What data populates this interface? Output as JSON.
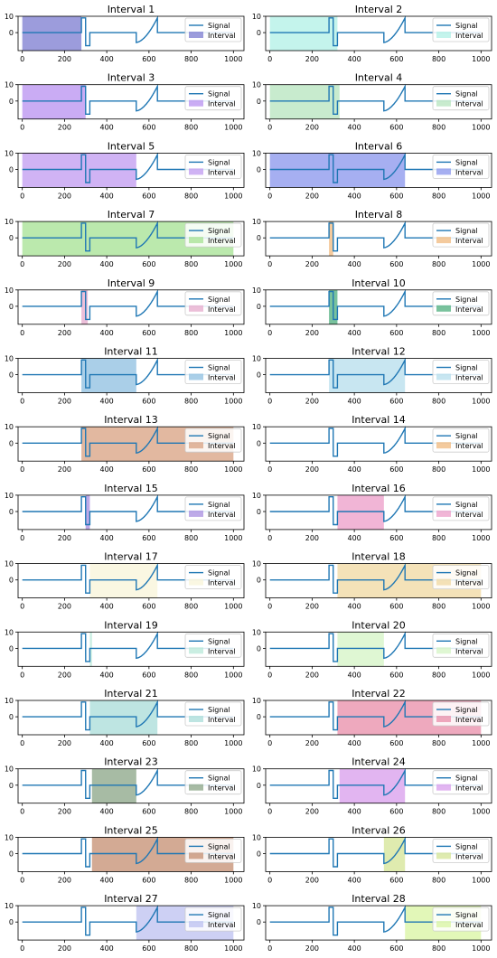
{
  "figure": {
    "legend_signal_label": "Signal",
    "legend_interval_label": "Interval"
  },
  "chart_data": {
    "type": "line",
    "grid": false,
    "legend_position": "top-right",
    "signal_color": "#1f77b4",
    "xlim": [
      -20,
      1050
    ],
    "ylim": [
      -11,
      10
    ],
    "x_ticks": [
      0,
      200,
      400,
      600,
      800,
      1000
    ],
    "y_ticks": [
      0,
      10
    ],
    "signal_breakpoints": [
      0,
      280,
      320,
      540,
      640
    ],
    "signal_description": "flat at 0, pulse to ~9 at 280-300, dip to ~-8 at 300-320, flat, then rising curve from ~-6 at 540 to ~9 at 640, then 0 to 1000",
    "panels": [
      {
        "title": "Interval 1",
        "interval": [
          0,
          280
        ],
        "color": "#7b7bd0"
      },
      {
        "title": "Interval 2",
        "interval": [
          0,
          320
        ],
        "color": "#b0f0e6"
      },
      {
        "title": "Interval 3",
        "interval": [
          0,
          300
        ],
        "color": "#b890f0"
      },
      {
        "title": "Interval 4",
        "interval": [
          0,
          330
        ],
        "color": "#b6e4bd"
      },
      {
        "title": "Interval 5",
        "interval": [
          0,
          540
        ],
        "color": "#c09af0"
      },
      {
        "title": "Interval 6",
        "interval": [
          0,
          640
        ],
        "color": "#8894ec"
      },
      {
        "title": "Interval 7",
        "interval": [
          0,
          1000
        ],
        "color": "#a4e292"
      },
      {
        "title": "Interval 8",
        "interval": [
          280,
          300
        ],
        "color": "#f0b87c"
      },
      {
        "title": "Interval 9",
        "interval": [
          280,
          310
        ],
        "color": "#e6a9cc"
      },
      {
        "title": "Interval 10",
        "interval": [
          280,
          320
        ],
        "color": "#4cae7c"
      },
      {
        "title": "Interval 11",
        "interval": [
          280,
          540
        ],
        "color": "#8ebfe0"
      },
      {
        "title": "Interval 12",
        "interval": [
          280,
          640
        ],
        "color": "#b6deec"
      },
      {
        "title": "Interval 13",
        "interval": [
          280,
          1000
        ],
        "color": "#d8a080"
      },
      {
        "title": "Interval 14",
        "interval": [
          0,
          0
        ],
        "color": "#f0b87c"
      },
      {
        "title": "Interval 15",
        "interval": [
          300,
          320
        ],
        "color": "#a88ee0"
      },
      {
        "title": "Interval 16",
        "interval": [
          320,
          540
        ],
        "color": "#ec9cc8"
      },
      {
        "title": "Interval 17",
        "interval": [
          320,
          640
        ],
        "color": "#f8f4d8"
      },
      {
        "title": "Interval 18",
        "interval": [
          320,
          1000
        ],
        "color": "#f0d8a0"
      },
      {
        "title": "Interval 19",
        "interval": [
          320,
          330
        ],
        "color": "#b8e8d8"
      },
      {
        "title": "Interval 20",
        "interval": [
          320,
          540
        ],
        "color": "#d4f4c4"
      },
      {
        "title": "Interval 21",
        "interval": [
          320,
          640
        ],
        "color": "#a8dcd8"
      },
      {
        "title": "Interval 22",
        "interval": [
          320,
          1000
        ],
        "color": "#e88ca8"
      },
      {
        "title": "Interval 23",
        "interval": [
          330,
          540
        ],
        "color": "#8aa486"
      },
      {
        "title": "Interval 24",
        "interval": [
          330,
          640
        ],
        "color": "#d89cec"
      },
      {
        "title": "Interval 25",
        "interval": [
          330,
          1000
        ],
        "color": "#c48e70"
      },
      {
        "title": "Interval 26",
        "interval": [
          540,
          640
        ],
        "color": "#d4e494"
      },
      {
        "title": "Interval 27",
        "interval": [
          540,
          1000
        ],
        "color": "#bcc0f0"
      },
      {
        "title": "Interval 28",
        "interval": [
          640,
          1000
        ],
        "color": "#d8f4a0"
      }
    ]
  }
}
